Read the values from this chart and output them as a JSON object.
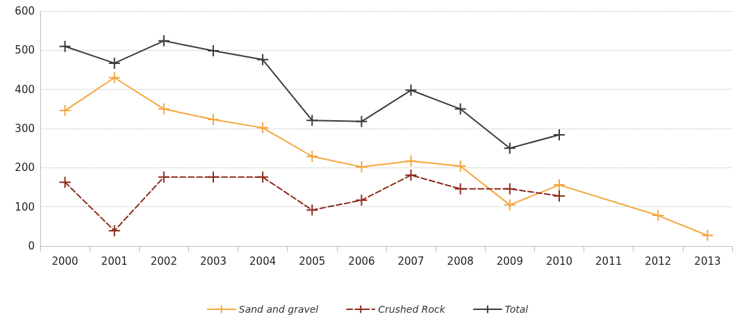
{
  "chart_data": {
    "type": "line",
    "categories": [
      "2000",
      "2001",
      "2002",
      "2003",
      "2004",
      "2005",
      "2006",
      "2007",
      "2008",
      "2009",
      "2010",
      "2011",
      "2012",
      "2013"
    ],
    "series": [
      {
        "name": "Sand and gravel",
        "color": "#f5a53c",
        "line_style": "solid",
        "values": [
          346,
          430,
          350,
          323,
          302,
          229,
          202,
          217,
          204,
          105,
          156,
          null,
          78,
          27
        ]
      },
      {
        "name": "Crushed Rock",
        "color": "#8e2b1c",
        "line_style": "dashed",
        "values": [
          163,
          39,
          176,
          176,
          176,
          92,
          117,
          181,
          146,
          146,
          128,
          null,
          null,
          null
        ]
      },
      {
        "name": "Total",
        "color": "#3a3a3a",
        "line_style": "solid",
        "values": [
          510,
          467,
          524,
          499,
          476,
          321,
          318,
          398,
          350,
          250,
          284,
          null,
          null,
          null
        ]
      }
    ],
    "ylim": [
      0,
      600
    ],
    "yticks": [
      0,
      100,
      200,
      300,
      400,
      500,
      600
    ],
    "grid": "y",
    "legend": "bottom",
    "marker": "cross"
  }
}
